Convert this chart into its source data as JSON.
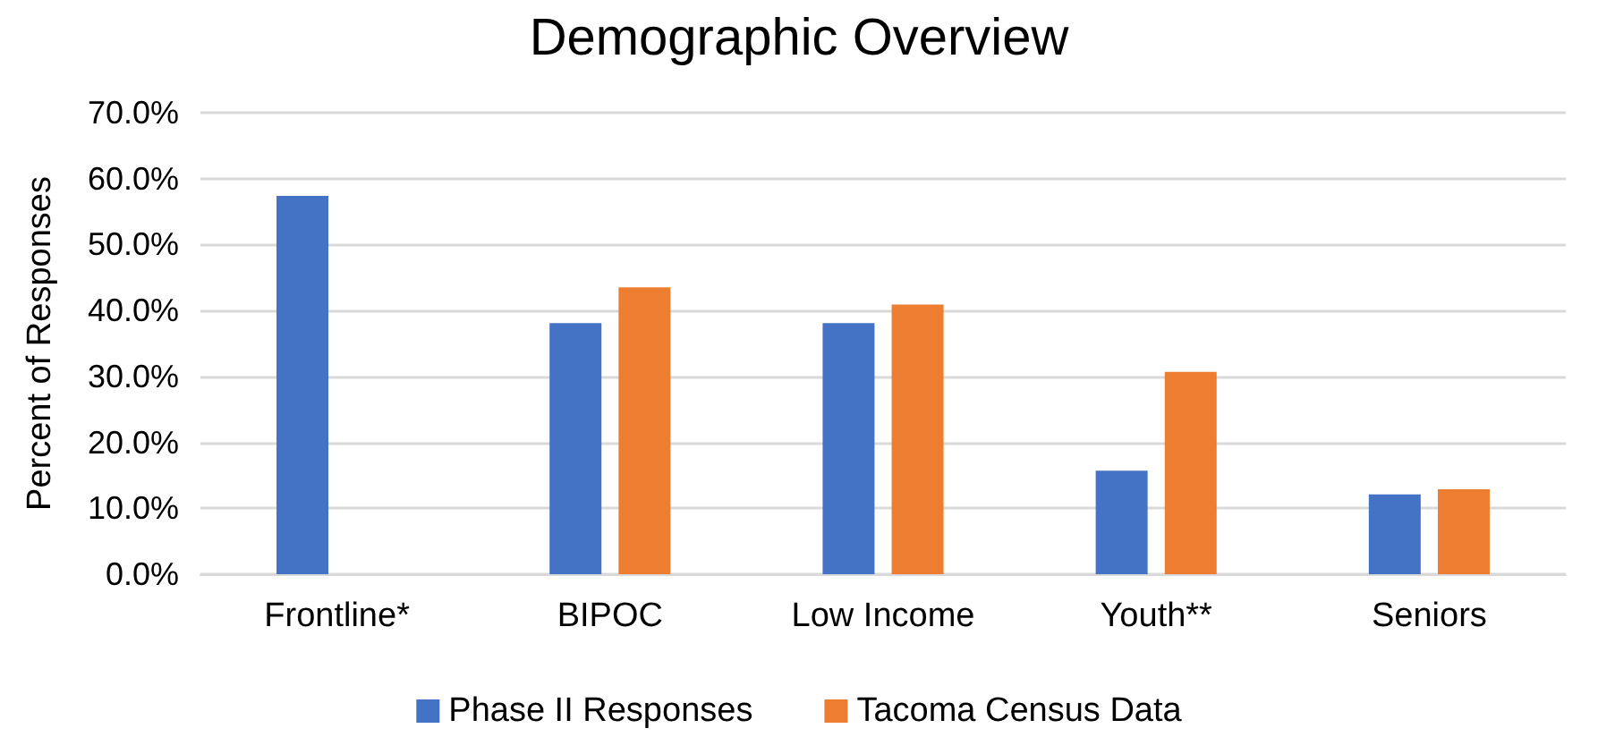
{
  "chart_data": {
    "type": "bar",
    "title": "Demographic Overview",
    "ylabel": "Percent of Responses",
    "categories": [
      "Frontline*",
      "BIPOC",
      "Low Income",
      "Youth**",
      "Seniors"
    ],
    "series": [
      {
        "name": "Phase II Responses",
        "color": "#4472c4",
        "values": [
          57.4,
          38.1,
          38.1,
          15.7,
          12.1
        ]
      },
      {
        "name": "Tacoma Census Data",
        "color": "#ed7d31",
        "values": [
          null,
          43.5,
          40.9,
          30.7,
          12.9
        ]
      }
    ],
    "ylim": [
      0,
      70
    ],
    "yticks": [
      {
        "value": 0,
        "label": "0.0%"
      },
      {
        "value": 10,
        "label": "10.0%"
      },
      {
        "value": 20,
        "label": "20.0%"
      },
      {
        "value": 30,
        "label": "30.0%"
      },
      {
        "value": 40,
        "label": "40.0%"
      },
      {
        "value": 50,
        "label": "50.0%"
      },
      {
        "value": 60,
        "label": "60.0%"
      },
      {
        "value": 70,
        "label": "70.0%"
      }
    ],
    "grid": "y",
    "legend": "bottom"
  }
}
